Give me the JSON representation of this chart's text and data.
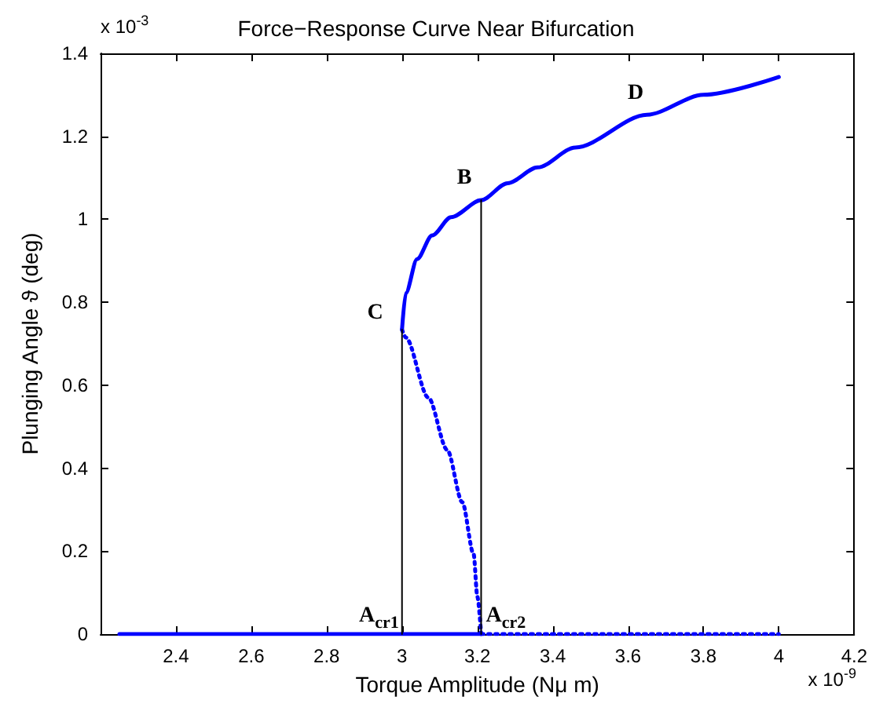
{
  "chart_data": {
    "type": "line",
    "title": "Force−Response Curve Near Bifurcation",
    "xlabel": "Torque Amplitude (Nμ m)",
    "ylabel": "Plunging Angle ϑ (deg)",
    "xlim": [
      2.2,
      4.2
    ],
    "xticks": [
      2.4,
      2.6,
      2.8,
      3,
      3.2,
      3.4,
      3.6,
      3.8,
      4,
      4.2
    ],
    "ylim": [
      0,
      1.4
    ],
    "yticks": [
      0,
      0.2,
      0.4,
      0.6,
      0.8,
      1,
      1.2,
      1.4
    ],
    "grid": false,
    "marker": "none",
    "series": [
      {
        "color": "#0000ff",
        "line_style": "solid",
        "x": [
          3.0,
          3.01,
          3.04,
          3.08,
          3.13,
          3.21,
          3.28,
          3.36,
          3.46,
          3.65,
          3.8,
          4.0
        ],
        "values": [
          0.734,
          0.822,
          0.904,
          0.961,
          1.005,
          1.046,
          1.087,
          1.125,
          1.173,
          1.252,
          1.3,
          1.343
        ]
      },
      {
        "color": "#0000ff",
        "line_style": "dotted",
        "x": [
          3.0,
          3.01,
          3.07,
          3.12,
          3.16,
          3.19,
          3.2,
          3.21
        ],
        "values": [
          0.734,
          0.715,
          0.57,
          0.444,
          0.318,
          0.193,
          0.09,
          0
        ]
      },
      {
        "color": "#0000ff",
        "line_style": "solid",
        "x": [
          2.25,
          3.21
        ],
        "values": [
          0,
          0
        ]
      },
      {
        "color": "#0000ff",
        "line_style": "dotted",
        "x": [
          3.21,
          4.0
        ],
        "values": [
          0,
          0
        ]
      },
      {
        "color": "#000000",
        "line_style": "solid",
        "x": [
          3.0,
          3.0
        ],
        "values": [
          0,
          0.734
        ]
      },
      {
        "color": "#000000",
        "line_style": "solid",
        "x": [
          3.21,
          3.21
        ],
        "values": [
          0,
          1.046
        ]
      }
    ],
    "annotations": [
      {
        "text": "C",
        "x": 3.0,
        "y": 0.734
      },
      {
        "text": "B",
        "x": 3.21,
        "y": 1.046
      },
      {
        "text": "D",
        "x": 3.62,
        "y": 1.25
      },
      {
        "text": "A$_{cr1}$",
        "x": 3.0,
        "y": 0
      },
      {
        "text": "A$_{cr2}$",
        "x": 3.21,
        "y": 0
      },
      "x 10$^{-3}$",
      "x 10$^{-9}$"
    ]
  }
}
